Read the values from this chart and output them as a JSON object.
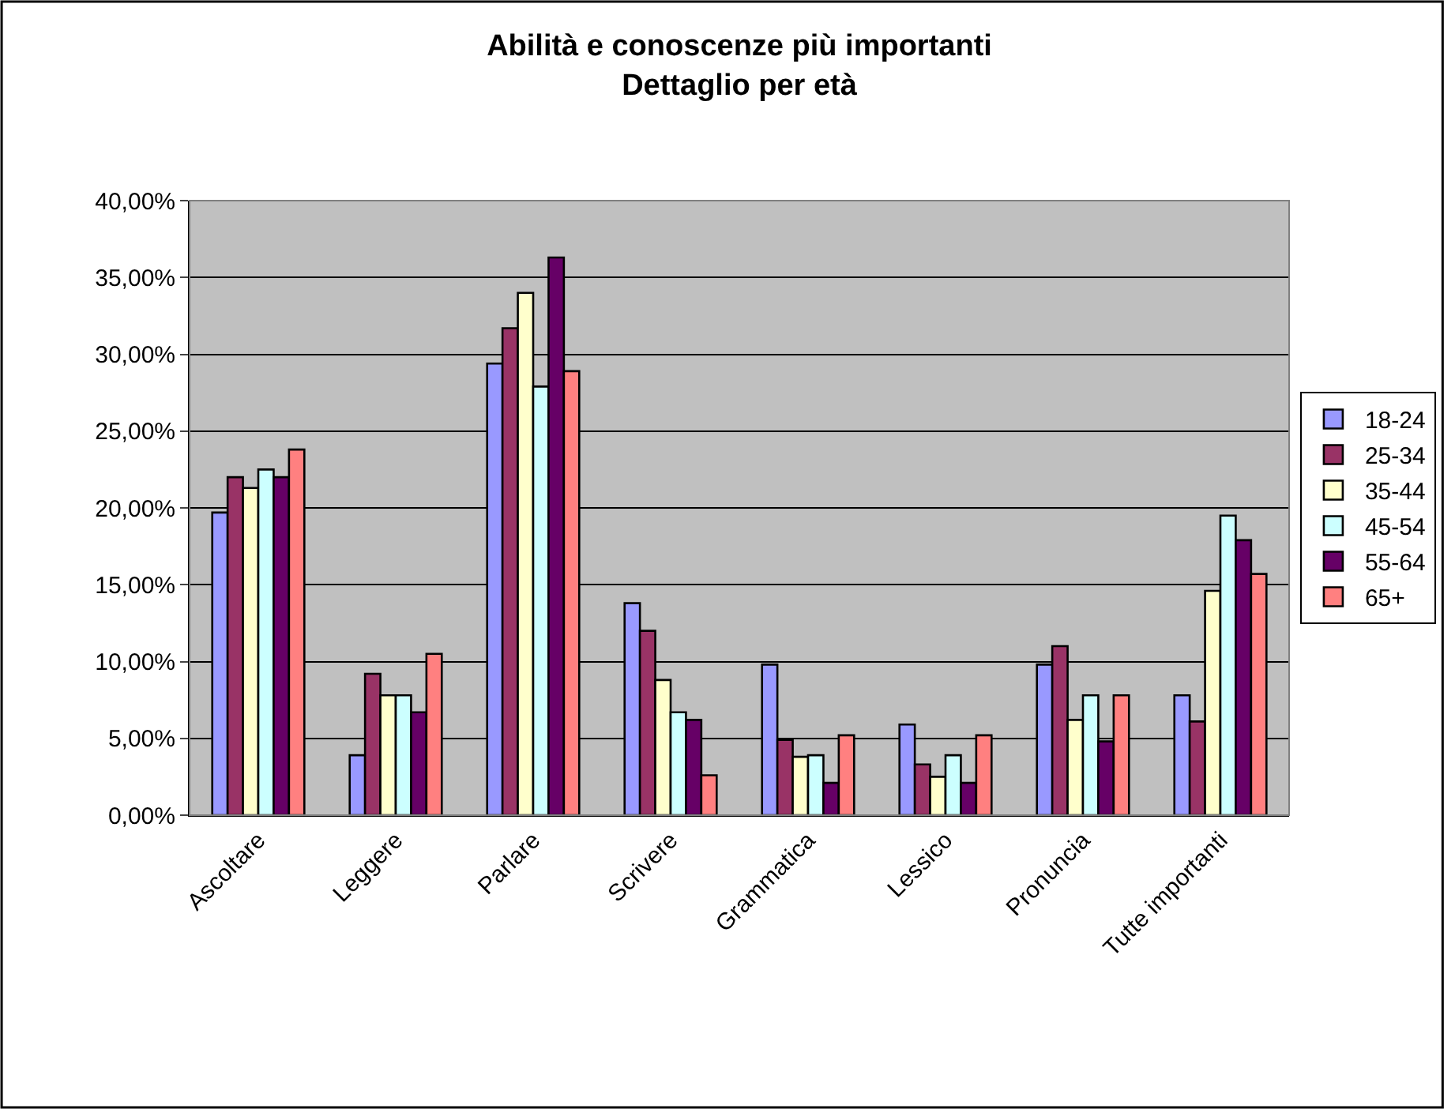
{
  "chart_data": {
    "type": "bar",
    "title": "Abilità e conoscenze più importanti\nDettaglio per età",
    "categories": [
      "Ascoltare",
      "Leggere",
      "Parlare",
      "Scrivere",
      "Grammatica",
      "Lessico",
      "Pronuncia",
      "Tutte importanti"
    ],
    "series": [
      {
        "name": "18-24",
        "color": "#9999ff",
        "values": [
          19.7,
          3.9,
          29.4,
          13.8,
          9.8,
          5.9,
          9.8,
          7.8
        ]
      },
      {
        "name": "25-34",
        "color": "#993366",
        "values": [
          22.0,
          9.2,
          31.7,
          12.0,
          4.9,
          3.3,
          11.0,
          6.1
        ]
      },
      {
        "name": "35-44",
        "color": "#ffffcc",
        "values": [
          21.3,
          7.8,
          34.0,
          8.8,
          3.8,
          2.5,
          6.2,
          14.6
        ]
      },
      {
        "name": "45-54",
        "color": "#ccffff",
        "values": [
          22.5,
          7.8,
          27.9,
          6.7,
          3.9,
          3.9,
          7.8,
          19.5
        ]
      },
      {
        "name": "55-64",
        "color": "#660066",
        "values": [
          22.0,
          6.7,
          36.3,
          6.2,
          2.1,
          2.1,
          4.8,
          17.9
        ]
      },
      {
        "name": "65+",
        "color": "#ff8080",
        "values": [
          23.8,
          10.5,
          28.9,
          2.6,
          5.2,
          5.2,
          7.8,
          15.7
        ]
      }
    ],
    "ylim": [
      0,
      40
    ],
    "yticks": [
      {
        "value": 0,
        "label": "0,00%"
      },
      {
        "value": 5,
        "label": "5,00%"
      },
      {
        "value": 10,
        "label": "10,00%"
      },
      {
        "value": 15,
        "label": "15,00%"
      },
      {
        "value": 20,
        "label": "20,00%"
      },
      {
        "value": 25,
        "label": "25,00%"
      },
      {
        "value": 30,
        "label": "30,00%"
      },
      {
        "value": 35,
        "label": "35,00%"
      },
      {
        "value": 40,
        "label": "40,00%"
      }
    ],
    "grid": "y",
    "legend": "right"
  }
}
